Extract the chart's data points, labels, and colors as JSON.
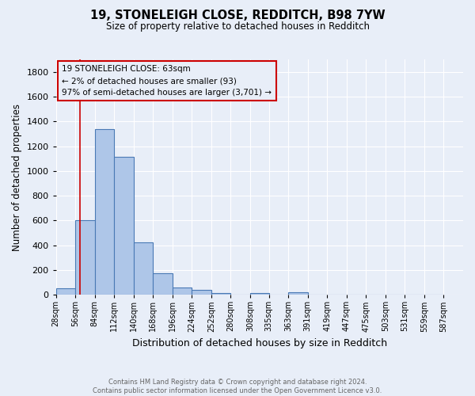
{
  "title": "19, STONELEIGH CLOSE, REDDITCH, B98 7YW",
  "subtitle": "Size of property relative to detached houses in Redditch",
  "xlabel": "Distribution of detached houses by size in Redditch",
  "ylabel": "Number of detached properties",
  "footer_line1": "Contains HM Land Registry data © Crown copyright and database right 2024.",
  "footer_line2": "Contains public sector information licensed under the Open Government Licence v3.0.",
  "annotation_line1": "19 STONELEIGH CLOSE: 63sqm",
  "annotation_line2": "← 2% of detached houses are smaller (93)",
  "annotation_line3": "97% of semi-detached houses are larger (3,701) →",
  "property_size": 63,
  "bin_edges": [
    28,
    56,
    84,
    112,
    140,
    168,
    196,
    224,
    252,
    280,
    308,
    335,
    363,
    391,
    419,
    447,
    475,
    503,
    531,
    559,
    587
  ],
  "bar_heights": [
    55,
    600,
    1340,
    1115,
    425,
    175,
    60,
    40,
    15,
    0,
    15,
    0,
    20,
    0,
    0,
    0,
    0,
    0,
    0,
    0
  ],
  "bar_color": "#aec6e8",
  "bar_edge_color": "#4a7ab5",
  "red_line_color": "#cc0000",
  "annotation_box_color": "#cc0000",
  "background_color": "#e8eef8",
  "grid_color": "#ffffff",
  "ylim": [
    0,
    1900
  ],
  "yticks": [
    0,
    200,
    400,
    600,
    800,
    1000,
    1200,
    1400,
    1600,
    1800
  ]
}
